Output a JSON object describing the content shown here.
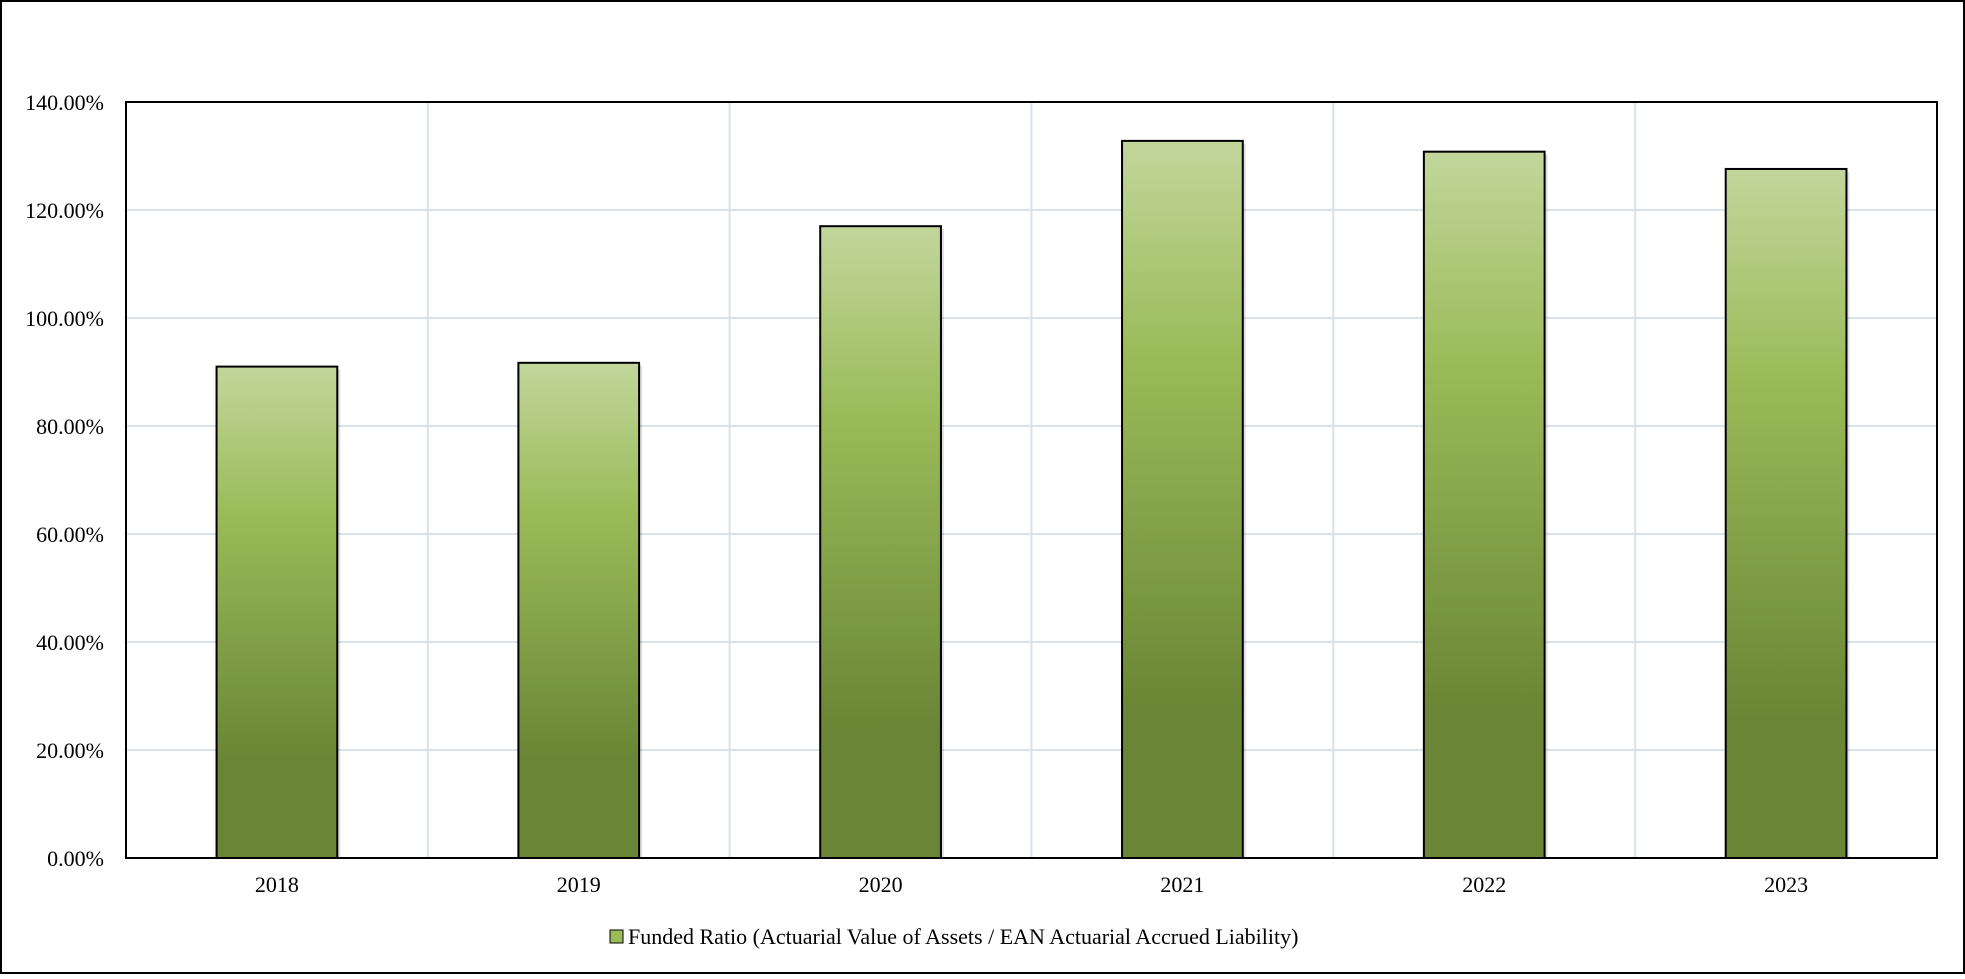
{
  "chart_data": {
    "type": "bar",
    "title": "",
    "xlabel": "",
    "ylabel": "",
    "categories": [
      "2018",
      "2019",
      "2020",
      "2021",
      "2022",
      "2023"
    ],
    "series": [
      {
        "name": "Funded Ratio (Actuarial Value of Assets / EAN Actuarial Accrued Liability)",
        "values": [
          91.0,
          91.7,
          117.0,
          132.8,
          130.8,
          127.6
        ]
      }
    ],
    "ylim": [
      0,
      140
    ],
    "y_ticks": [
      "0.00%",
      "20.00%",
      "40.00%",
      "60.00%",
      "80.00%",
      "100.00%",
      "120.00%",
      "140.00%"
    ],
    "y_tick_values": [
      0,
      20,
      40,
      60,
      80,
      100,
      120,
      140
    ],
    "grid": true,
    "legend_position": "bottom",
    "colors": {
      "bar_top": "#c2d69b",
      "bar_mid": "#9bbb59",
      "bar_bottom": "#6a8535",
      "bar_stroke": "#000000",
      "grid": "#d9e1ea",
      "axis": "#000000"
    }
  }
}
